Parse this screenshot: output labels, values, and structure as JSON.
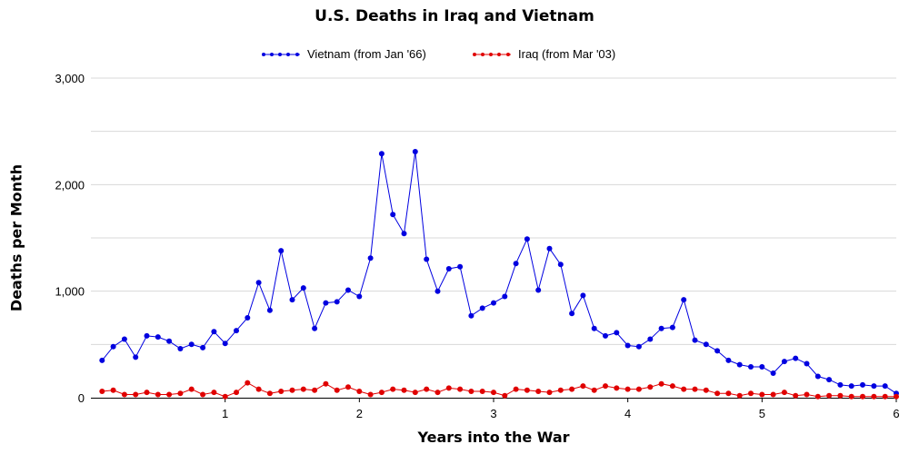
{
  "chart_data": {
    "type": "line",
    "title": "U.S. Deaths in Iraq and Vietnam",
    "xlabel": "Years into the War",
    "ylabel": "Deaths per Month",
    "xlim": [
      0,
      6
    ],
    "ylim": [
      0,
      3000
    ],
    "x_ticks": [
      1,
      2,
      3,
      4,
      5,
      6
    ],
    "y_ticks": [
      0,
      1000,
      2000,
      3000
    ],
    "y_tick_labels": [
      "0",
      "1,000",
      "2,000",
      "3,000"
    ],
    "grid": "horizontal",
    "legend_position": "top",
    "series": [
      {
        "name": "Vietnam (from Jan '66)",
        "color": "#0000e0",
        "x_step": 0.08333,
        "x_start": 0.08333,
        "values": [
          350,
          480,
          550,
          380,
          580,
          570,
          530,
          460,
          500,
          470,
          620,
          510,
          630,
          750,
          1080,
          820,
          1380,
          920,
          1030,
          650,
          890,
          900,
          1010,
          950,
          1310,
          2290,
          1720,
          1540,
          2310,
          1300,
          1000,
          1210,
          1230,
          770,
          840,
          890,
          950,
          1260,
          1490,
          1010,
          1400,
          1250,
          790,
          960,
          650,
          580,
          610,
          490,
          480,
          550,
          650,
          660,
          920,
          540,
          500,
          440,
          350,
          310,
          290,
          290,
          230,
          340,
          370,
          320,
          200,
          170,
          120,
          110,
          120,
          110,
          110,
          40
        ]
      },
      {
        "name": "Iraq (from Mar '03)",
        "color": "#e00000",
        "x_step": 0.08333,
        "x_start": 0.08333,
        "values": [
          60,
          70,
          30,
          30,
          50,
          30,
          30,
          40,
          80,
          30,
          50,
          10,
          50,
          140,
          80,
          40,
          60,
          70,
          80,
          70,
          130,
          70,
          100,
          60,
          30,
          50,
          80,
          70,
          50,
          80,
          50,
          90,
          80,
          60,
          60,
          50,
          20,
          80,
          70,
          60,
          50,
          70,
          80,
          110,
          70,
          110,
          90,
          80,
          80,
          100,
          130,
          110,
          80,
          80,
          70,
          40,
          40,
          20,
          40,
          30,
          30,
          50,
          20,
          30,
          10,
          20,
          20,
          10,
          10,
          10,
          10,
          10
        ]
      }
    ]
  }
}
